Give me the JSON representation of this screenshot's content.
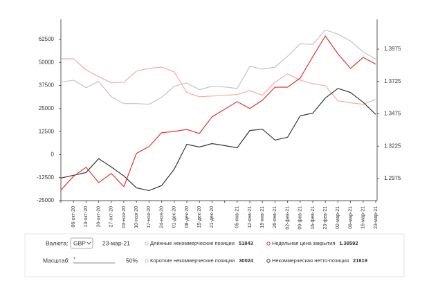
{
  "chart_data": {
    "type": "line",
    "categories": [
      null,
      "06-окт-20",
      "13-окт-20",
      "20-окт-20",
      "27-окт-20",
      "03-ноя-20",
      "10-ноя-20",
      "17-ноя-20",
      "24-ноя-20",
      "01-дек-20",
      "08-дек-20",
      "15-дек-20",
      "21-дек-20",
      null,
      "05-янв-21",
      "12-янв-21",
      "19-янв-21",
      "26-янв-21",
      "02-фев-21",
      "09-фев-21",
      "16-фев-21",
      "23-фев-21",
      "02-мар-21",
      "09-мар-21",
      "16-мар-21",
      "23-мар-21"
    ],
    "series": [
      {
        "name": "Длинные некоммерческие позиции",
        "color": "#c4c4c4",
        "values": [
          39300,
          40400,
          36300,
          39700,
          31400,
          27700,
          27700,
          27300,
          31100,
          37100,
          38900,
          35200,
          37100,
          36700,
          35900,
          47900,
          46400,
          47500,
          53400,
          60200,
          59800,
          67700,
          65400,
          61700,
          55700,
          51843
        ]
      },
      {
        "name": "Недельная цена закрытия",
        "color": "#e8322e",
        "axis": "y2",
        "values": [
          1.2886,
          1.2992,
          1.3062,
          1.2944,
          1.3014,
          1.2912,
          1.3169,
          1.3222,
          1.3329,
          1.3339,
          1.3355,
          1.3323,
          1.3452,
          1.351,
          1.3569,
          1.3516,
          1.358,
          1.3681,
          1.3681,
          1.3751,
          1.3917,
          1.4076,
          1.3938,
          1.3826,
          1.3911,
          1.38592
        ]
      },
      {
        "name": "Короткие некоммерческие позиции",
        "color": "#f7a8a8",
        "values": [
          52000,
          52000,
          46000,
          42300,
          39000,
          39300,
          45300,
          46800,
          47500,
          44900,
          33700,
          31400,
          31800,
          32200,
          32600,
          34800,
          32200,
          39300,
          43800,
          40400,
          38500,
          37400,
          29200,
          28100,
          27300,
          30024
        ]
      },
      {
        "name": "Некоммерческая нетто-позиция",
        "color": "#333333",
        "values": [
          -12700,
          -11200,
          -9700,
          -2200,
          -6700,
          -11600,
          -18000,
          -19500,
          -16800,
          -7900,
          5600,
          4100,
          6000,
          4900,
          3700,
          13100,
          13800,
          7900,
          9400,
          21000,
          22500,
          30700,
          35900,
          33700,
          28400,
          21819
        ]
      }
    ],
    "ylim": [
      -25000,
      73400
    ],
    "yticks": [
      -25000,
      -12500,
      0,
      12500,
      25000,
      37500,
      50000,
      62500
    ],
    "y2lim": [
      1.2804,
      1.4205
    ],
    "y2ticks": [
      1.2975,
      1.3225,
      1.3475,
      1.3725,
      1.3975
    ],
    "grid": false
  },
  "controls": {
    "currency_label": "Валюта:",
    "currency": "GBP",
    "date": "23-мар-21",
    "scale_label": "Масштаб:",
    "scale": "50%"
  }
}
